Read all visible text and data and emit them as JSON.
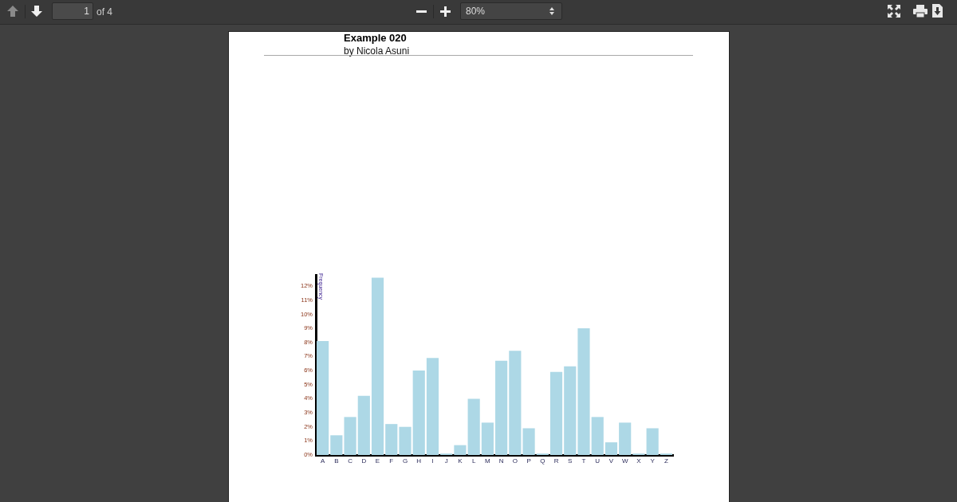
{
  "chart_data": {
    "type": "bar",
    "title": "Example 020",
    "subtitle": "by Nicola Asuni",
    "ylabel": "Frequency",
    "annotations": [
      "1",
      "of 4",
      "80%"
    ],
    "categories": [
      "A",
      "B",
      "C",
      "D",
      "E",
      "F",
      "G",
      "H",
      "I",
      "J",
      "K",
      "L",
      "M",
      "N",
      "O",
      "P",
      "Q",
      "R",
      "S",
      "T",
      "U",
      "V",
      "W",
      "X",
      "Y",
      "Z"
    ],
    "values": [
      8.1,
      1.4,
      2.7,
      4.2,
      12.6,
      2.2,
      2.0,
      6.0,
      6.9,
      0.1,
      0.7,
      4.0,
      2.3,
      6.7,
      7.4,
      1.9,
      0.1,
      5.9,
      6.3,
      9.0,
      2.7,
      0.9,
      2.3,
      0.1,
      1.9,
      0.1
    ],
    "color": "#add8e6",
    "ylim": [
      0,
      12.8
    ],
    "yticks": [
      {
        "value": 0,
        "label": "0%"
      },
      {
        "value": 1,
        "label": "1%"
      },
      {
        "value": 2,
        "label": "2%"
      },
      {
        "value": 3,
        "label": "3%"
      },
      {
        "value": 4,
        "label": "4%"
      },
      {
        "value": 5,
        "label": "5%"
      },
      {
        "value": 6,
        "label": "6%"
      },
      {
        "value": 7,
        "label": "7%"
      },
      {
        "value": 8,
        "label": "8%"
      },
      {
        "value": 9,
        "label": "9%"
      },
      {
        "value": 10,
        "label": "10%"
      },
      {
        "value": 11,
        "label": "11%"
      },
      {
        "value": 12,
        "label": "12%"
      }
    ]
  }
}
